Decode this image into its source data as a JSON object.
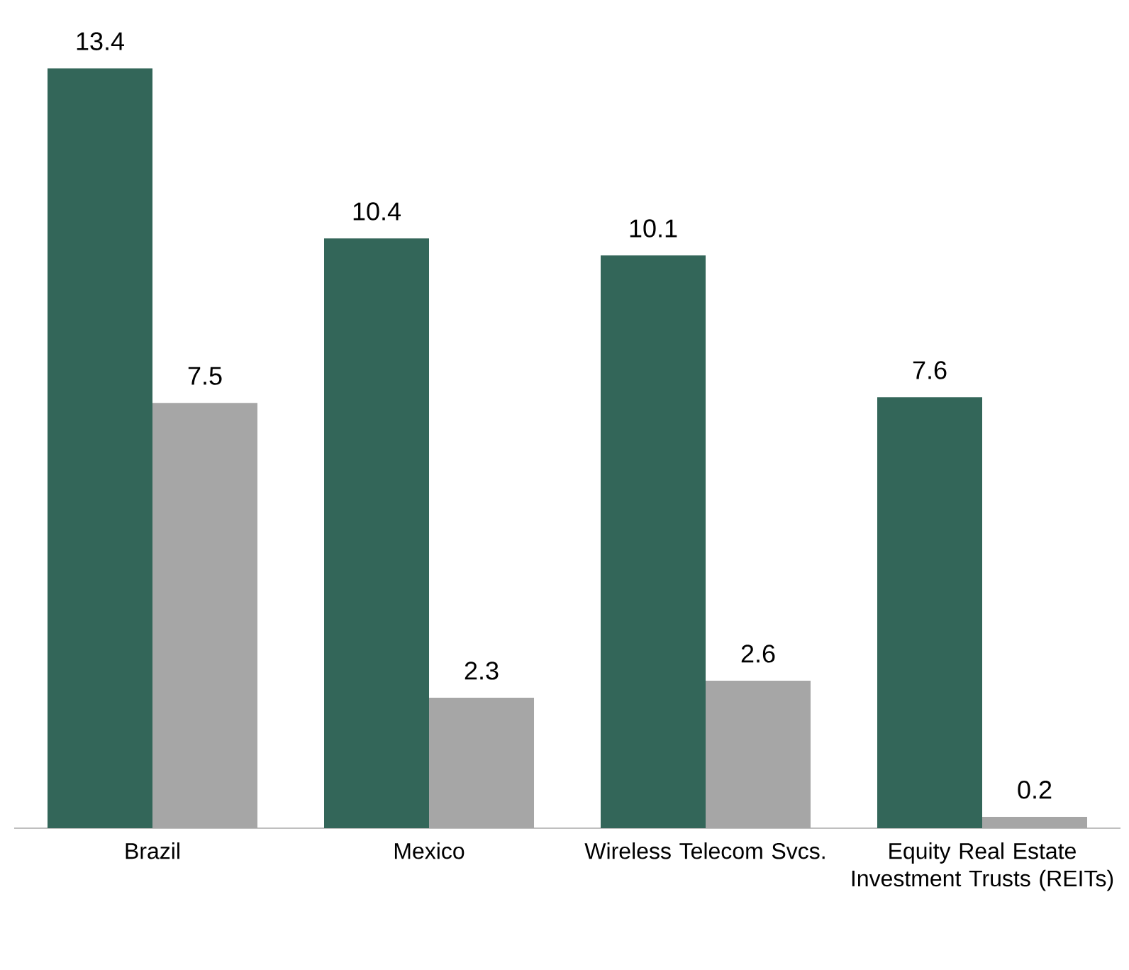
{
  "chart_data": {
    "type": "bar",
    "categories": [
      "Brazil",
      "Mexico",
      "Wireless Telecom Svcs.",
      "Equity Real Estate Investment Trusts (REITs)"
    ],
    "series": [
      {
        "color": "#336659",
        "values": [
          13.4,
          10.4,
          10.1,
          7.6
        ]
      },
      {
        "color": "#a6a6a6",
        "values": [
          7.5,
          2.3,
          2.6,
          0.2
        ]
      }
    ],
    "data_labels": true
  }
}
